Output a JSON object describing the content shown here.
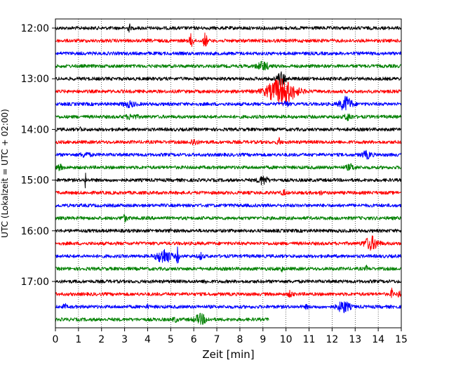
{
  "chart_data": {
    "type": "line",
    "xlabel": "Zeit  [min]",
    "ylabel": "UTC (Lokalzeit = UTC + 02:00)",
    "xlim": [
      0,
      15
    ],
    "x_ticks": [
      0,
      1,
      2,
      3,
      4,
      5,
      6,
      7,
      8,
      9,
      10,
      11,
      12,
      13,
      14,
      15
    ],
    "x_tick_labels": [
      "0",
      "1",
      "2",
      "3",
      "4",
      "5",
      "6",
      "7",
      "8",
      "9",
      "10",
      "11",
      "12",
      "13",
      "14",
      "15"
    ],
    "y_tick_labels": [
      "12:00",
      "13:00",
      "14:00",
      "15:00",
      "16:00",
      "17:00"
    ],
    "y_tick_rows": [
      0,
      4,
      8,
      12,
      16,
      20
    ],
    "grid_x": true,
    "series_colors": [
      "#000000",
      "#ff0000",
      "#0000ff",
      "#008000"
    ],
    "rows": [
      {
        "start": "12:00",
        "events": [
          [
            3.2,
            0.5,
            0.05
          ]
        ]
      },
      {
        "start": "12:15",
        "events": [
          [
            5.9,
            0.9,
            0.08
          ],
          [
            6.5,
            0.9,
            0.08
          ]
        ]
      },
      {
        "start": "12:30",
        "events": []
      },
      {
        "start": "12:45",
        "events": [
          [
            9.0,
            0.5,
            0.25
          ]
        ]
      },
      {
        "start": "13:00",
        "events": [
          [
            9.8,
            0.8,
            0.2
          ]
        ]
      },
      {
        "start": "13:15",
        "events": [
          [
            9.8,
            1.6,
            0.6
          ]
        ]
      },
      {
        "start": "13:30",
        "events": [
          [
            12.6,
            0.9,
            0.25
          ],
          [
            3.2,
            0.3,
            0.25
          ],
          [
            10.0,
            0.35,
            0.1
          ]
        ]
      },
      {
        "start": "13:45",
        "events": [
          [
            12.7,
            0.4,
            0.15
          ],
          [
            3.3,
            0.25,
            0.25
          ]
        ]
      },
      {
        "start": "14:00",
        "events": [
          [
            1.1,
            0.3,
            0.04
          ]
        ]
      },
      {
        "start": "14:15",
        "events": [
          [
            6.0,
            0.35,
            0.15
          ],
          [
            9.7,
            0.45,
            0.07
          ]
        ]
      },
      {
        "start": "14:30",
        "events": [
          [
            13.5,
            0.4,
            0.2
          ],
          [
            1.3,
            0.25,
            0.2
          ]
        ]
      },
      {
        "start": "14:45",
        "events": [
          [
            12.8,
            0.3,
            0.2
          ],
          [
            0.2,
            0.3,
            0.1
          ]
        ]
      },
      {
        "start": "15:00",
        "events": [
          [
            1.3,
            1.2,
            0.03
          ],
          [
            9.0,
            0.5,
            0.2
          ]
        ]
      },
      {
        "start": "15:15",
        "events": [
          [
            9.9,
            0.3,
            0.08
          ],
          [
            11.5,
            0.25,
            0.05
          ]
        ]
      },
      {
        "start": "15:30",
        "events": []
      },
      {
        "start": "15:45",
        "events": [
          [
            3.0,
            0.35,
            0.12
          ]
        ]
      },
      {
        "start": "16:00",
        "events": [
          [
            5.0,
            0.25,
            0.05
          ]
        ]
      },
      {
        "start": "16:15",
        "events": [
          [
            13.7,
            0.8,
            0.3
          ]
        ]
      },
      {
        "start": "16:30",
        "events": [
          [
            4.7,
            0.9,
            0.3
          ],
          [
            5.3,
            1.2,
            0.05
          ],
          [
            6.3,
            0.35,
            0.1
          ]
        ]
      },
      {
        "start": "16:45",
        "events": [
          [
            9.8,
            0.3,
            0.08
          ],
          [
            13.5,
            0.3,
            0.05
          ]
        ]
      },
      {
        "start": "17:00",
        "events": [
          [
            6.5,
            0.25,
            0.05
          ]
        ]
      },
      {
        "start": "17:15",
        "events": [
          [
            10.2,
            0.35,
            0.1
          ],
          [
            14.6,
            0.7,
            0.05
          ],
          [
            14.9,
            0.4,
            0.05
          ]
        ]
      },
      {
        "start": "17:30",
        "events": [
          [
            12.5,
            0.7,
            0.25
          ],
          [
            0.4,
            0.45,
            0.05
          ],
          [
            4.0,
            0.2,
            0.05
          ],
          [
            10.9,
            0.25,
            0.05
          ]
        ]
      },
      {
        "start": "17:45",
        "end_min": 9.25,
        "events": [
          [
            6.3,
            0.6,
            0.25
          ],
          [
            5.2,
            0.25,
            0.1
          ]
        ]
      }
    ]
  }
}
